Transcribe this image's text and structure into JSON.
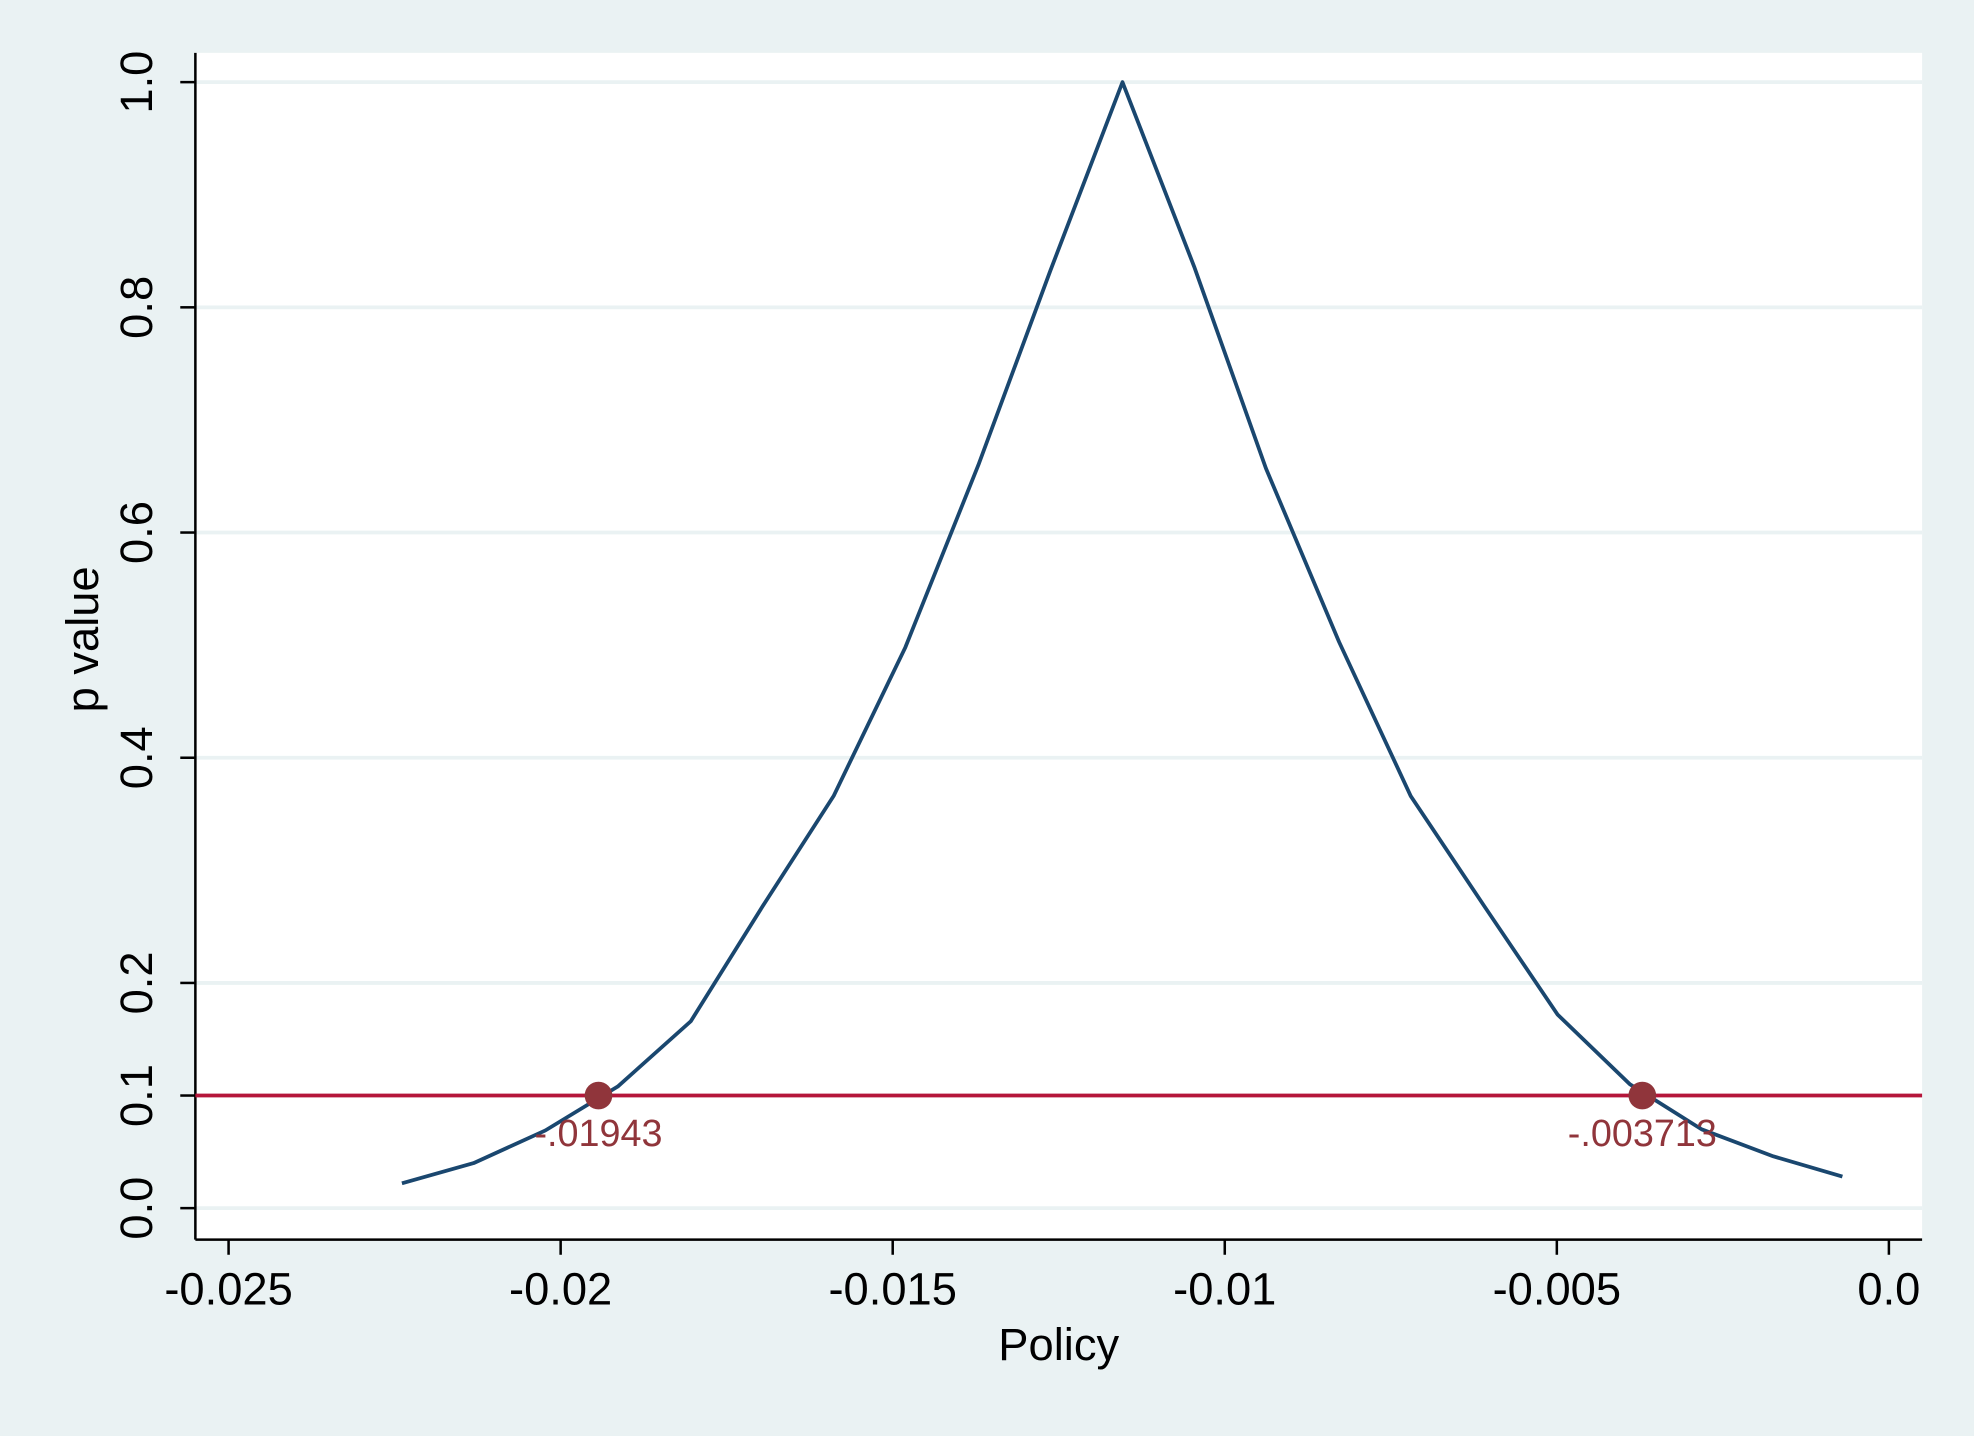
{
  "chart_data": {
    "type": "line",
    "x_label": "Policy",
    "y_label": "p value",
    "xlim": [
      -0.0255,
      0.0005
    ],
    "ylim": [
      -0.028,
      1.026
    ],
    "xticks": [
      -0.025,
      -0.02,
      -0.015,
      -0.01,
      -0.005,
      {
        "value": 0,
        "label": "0.0"
      }
    ],
    "yticks": [
      {
        "value": 0,
        "label": "0.0"
      },
      0.1,
      0.2,
      0.4,
      0.6,
      0.8,
      {
        "value": 1,
        "label": "1.0"
      }
    ],
    "grid": true,
    "series": [
      {
        "color": "#1a476f",
        "x": [
          -0.02239,
          -0.02131,
          -0.02023,
          -0.01914,
          -0.01804,
          -0.01696,
          -0.01589,
          -0.01481,
          -0.01371,
          -0.01263,
          -0.01154,
          -0.01046,
          -0.00938,
          -0.00828,
          -0.0072,
          -0.00609,
          -0.00499,
          -0.0039,
          -0.00282,
          -0.00174,
          -0.0007
        ],
        "values": [
          0.022,
          0.04,
          0.069,
          0.108,
          0.166,
          0.268,
          0.366,
          0.498,
          0.66,
          0.832,
          1.0,
          0.836,
          0.657,
          0.503,
          0.366,
          0.268,
          0.172,
          0.11,
          0.07,
          0.046,
          0.028
        ]
      }
    ],
    "threshold": {
      "value": 0.1,
      "color": "#b5163a"
    },
    "points": {
      "color": "#90353b",
      "x": [
        -0.01943,
        -0.003713
      ],
      "values": [
        0.1,
        0.1
      ],
      "x_labels": [
        "-.01943",
        "-.003713"
      ]
    }
  }
}
